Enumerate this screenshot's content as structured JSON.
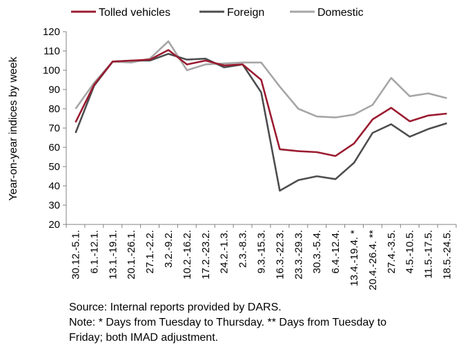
{
  "chart_data": {
    "type": "line",
    "ylabel": "Year-on-year indices by week",
    "xlabel": "",
    "ylim": [
      20,
      120
    ],
    "yticks": [
      20,
      30,
      40,
      50,
      60,
      70,
      80,
      90,
      100,
      110,
      120
    ],
    "grid": false,
    "legend_position": "top",
    "categories": [
      "30.12.-5.1.",
      "6.1.-12.1.",
      "13.1.-19.1.",
      "20.1.-26.1.",
      "27.1.-2.2.",
      "3.2.-9.2.",
      "10.2.-16.2.",
      "17.2.-23.2.",
      "24.2.-1.3.",
      "2.3.-8.3.",
      "9.3.-15.3.",
      "16.3.-22.3.",
      "23.3.-29.3.",
      "30.3.-5.4.",
      "6.4.-12.4.",
      "13.4.-19.4. *",
      "20.4.-26.4. **",
      "27.4.-3.5.",
      "4.5.-10.5.",
      "11.5.-17.5.",
      "18.5.-24.5."
    ],
    "series": [
      {
        "name": "Tolled vehicles",
        "color": "#9b1b30",
        "values": [
          73,
          92.5,
          104.5,
          105,
          105.5,
          110.5,
          103,
          105,
          102.5,
          103,
          95,
          59,
          58,
          57.5,
          55.5,
          62,
          74.5,
          80.5,
          73.5,
          76.5,
          77.5
        ]
      },
      {
        "name": "Foreign",
        "color": "#4d4d4f",
        "values": [
          67.5,
          92,
          104.5,
          105,
          105,
          108.5,
          105.5,
          106,
          101.5,
          103,
          88.5,
          37.5,
          43,
          45,
          43.5,
          52,
          67.5,
          72,
          65.5,
          69.5,
          72.5
        ]
      },
      {
        "name": "Domestic",
        "color": "#a6a6a6",
        "values": [
          80,
          93.5,
          104.5,
          104,
          106,
          115,
          100,
          103,
          103.5,
          104,
          104,
          91.5,
          80,
          76,
          75.5,
          77,
          82,
          96,
          86.5,
          88,
          85.5
        ]
      }
    ]
  },
  "notes": {
    "source": "Source: Internal reports provided by DARS.",
    "note_line1": "Note: * Days from Tuesday to Thursday. ** Days from Tuesday to",
    "note_line2": "Friday; both IMAD adjustment."
  }
}
